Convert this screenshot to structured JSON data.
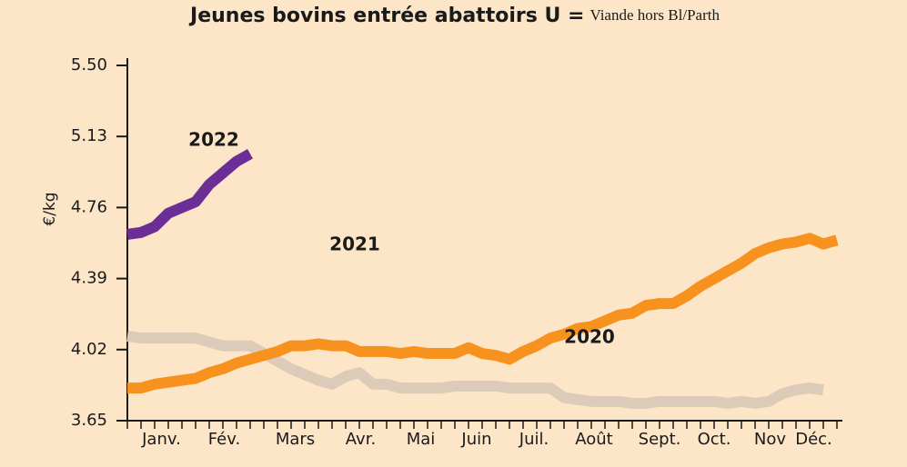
{
  "chart_data": {
    "type": "line",
    "title": "Jeunes bovins entrée abattoirs U =",
    "subtitle": "Viande hors Bl/Parth",
    "y_label": "€/kg",
    "x": [
      1,
      2,
      3,
      4,
      5,
      6,
      7,
      8,
      9,
      10,
      11,
      12,
      13,
      14,
      15,
      16,
      17,
      18,
      19,
      20,
      21,
      22,
      23,
      24,
      25,
      26,
      27,
      28,
      29,
      30,
      31,
      32,
      33,
      34,
      35,
      36,
      37,
      38,
      39,
      40,
      41,
      42,
      43,
      44,
      45,
      46,
      47,
      48,
      49,
      50,
      51,
      52,
      53
    ],
    "xlim": [
      1,
      53
    ],
    "xticks": [
      {
        "value": 3.5,
        "label": "Janv."
      },
      {
        "value": 8.1,
        "label": "Fév."
      },
      {
        "value": 13.3,
        "label": "Mars"
      },
      {
        "value": 18.1,
        "label": "Avr."
      },
      {
        "value": 22.5,
        "label": "Mai"
      },
      {
        "value": 26.6,
        "label": "Juin"
      },
      {
        "value": 30.8,
        "label": "Juil."
      },
      {
        "value": 35.2,
        "label": "Août"
      },
      {
        "value": 40,
        "label": "Sept."
      },
      {
        "value": 44,
        "label": "Oct."
      },
      {
        "value": 48.1,
        "label": "Nov"
      },
      {
        "value": 51.3,
        "label": "Déc."
      }
    ],
    "ylim": [
      3.65,
      5.5
    ],
    "yticks": [
      {
        "value": 3.65,
        "label": "3.65"
      },
      {
        "value": 4.02,
        "label": "4.02"
      },
      {
        "value": 4.39,
        "label": "4.39"
      },
      {
        "value": 4.76,
        "label": "4.76"
      },
      {
        "value": 5.13,
        "label": "5.13"
      },
      {
        "value": 5.5,
        "label": "5.50"
      }
    ],
    "series": [
      {
        "name": "2020",
        "color": "#dccbb9",
        "values": [
          4.09,
          4.08,
          4.08,
          4.08,
          4.08,
          4.08,
          4.06,
          4.04,
          4.04,
          4.04,
          4.0,
          3.96,
          3.92,
          3.89,
          3.86,
          3.84,
          3.88,
          3.9,
          3.84,
          3.84,
          3.82,
          3.82,
          3.82,
          3.82,
          3.83,
          3.83,
          3.83,
          3.83,
          3.82,
          3.82,
          3.82,
          3.82,
          3.77,
          3.76,
          3.75,
          3.75,
          3.75,
          3.74,
          3.74,
          3.75,
          3.75,
          3.75,
          3.75,
          3.75,
          3.74,
          3.75,
          3.74,
          3.75,
          3.79,
          3.81,
          3.82,
          3.81,
          null
        ]
      },
      {
        "name": "2021",
        "color": "#f7921e",
        "values": [
          3.82,
          3.82,
          3.84,
          3.85,
          3.86,
          3.87,
          3.9,
          3.92,
          3.95,
          3.97,
          3.99,
          4.01,
          4.04,
          4.04,
          4.05,
          4.04,
          4.04,
          4.01,
          4.01,
          4.01,
          4.0,
          4.01,
          4.0,
          4.0,
          4.0,
          4.03,
          4.0,
          3.99,
          3.97,
          4.01,
          4.04,
          4.08,
          4.1,
          4.13,
          4.14,
          4.17,
          4.2,
          4.21,
          4.25,
          4.26,
          4.26,
          4.3,
          4.35,
          4.39,
          4.43,
          4.47,
          4.52,
          4.55,
          4.57,
          4.58,
          4.6,
          4.57,
          4.59
        ]
      },
      {
        "name": "2022",
        "color": "#6a2e96",
        "values": [
          4.62,
          4.63,
          4.66,
          4.73,
          4.76,
          4.79,
          4.88,
          4.94,
          5.0,
          5.04,
          null,
          null,
          null,
          null,
          null,
          null,
          null,
          null,
          null,
          null,
          null,
          null,
          null,
          null,
          null,
          null,
          null,
          null,
          null,
          null,
          null,
          null,
          null,
          null,
          null,
          null,
          null,
          null,
          null,
          null,
          null,
          null,
          null,
          null,
          null,
          null,
          null,
          null,
          null,
          null,
          null,
          null,
          null
        ]
      }
    ]
  }
}
